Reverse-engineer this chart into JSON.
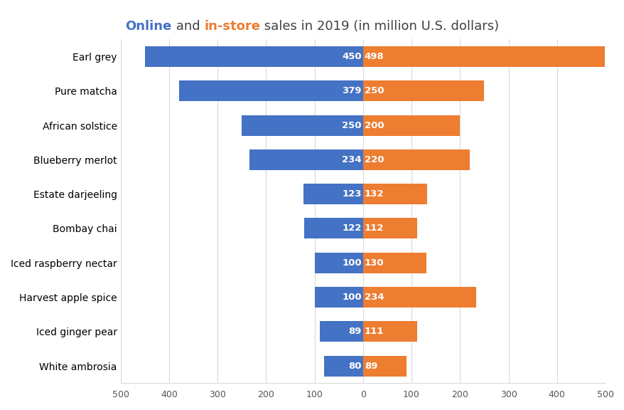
{
  "categories": [
    "Earl grey",
    "Pure matcha",
    "African solstice",
    "Blueberry merlot",
    "Estate darjeeling",
    "Bombay chai",
    "Iced raspberry nectar",
    "Harvest apple spice",
    "Iced ginger pear",
    "White ambrosia"
  ],
  "online": [
    450,
    379,
    250,
    234,
    123,
    122,
    100,
    100,
    89,
    80
  ],
  "instore": [
    498,
    250,
    200,
    220,
    132,
    112,
    130,
    234,
    111,
    89
  ],
  "online_color": "#4472C4",
  "instore_color": "#ED7D31",
  "title_online": "Online",
  "title_mid": " and ",
  "title_instore": "in-store",
  "title_suffix": " sales in 2019 (in million U.S. dollars)",
  "online_title_color": "#4472C4",
  "instore_title_color": "#ED7D31",
  "title_black_color": "#404040",
  "bar_label_color": "#FFFFFF",
  "axis_max": 500,
  "x_tick_vals": [
    -500,
    -400,
    -300,
    -200,
    -100,
    0,
    100,
    200,
    300,
    400,
    500
  ],
  "x_tick_labels": [
    "500",
    "400",
    "300",
    "200",
    "100",
    "0",
    "100",
    "200",
    "300",
    "400",
    "500"
  ],
  "background_color": "#FFFFFF",
  "grid_color": "#D9D9D9",
  "title_fontsize": 13,
  "label_fontsize": 9.5,
  "category_fontsize": 10,
  "tick_fontsize": 9,
  "bar_height": 0.6
}
